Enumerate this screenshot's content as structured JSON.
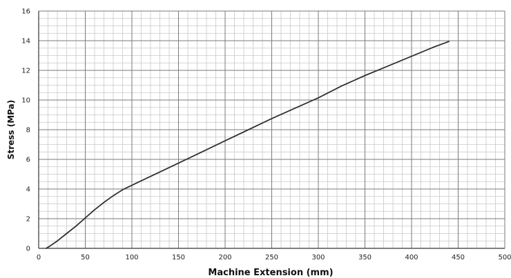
{
  "chart_data": {
    "type": "line",
    "title": "",
    "xlabel": "Machine Extension (mm)",
    "ylabel": "Stress (MPa)",
    "xlim": [
      0,
      500
    ],
    "ylim": [
      0,
      16
    ],
    "xticks": [
      0,
      50,
      100,
      150,
      200,
      250,
      300,
      350,
      400,
      450,
      500
    ],
    "yticks": [
      0,
      2,
      4,
      6,
      8,
      10,
      12,
      14,
      16
    ],
    "grid": true,
    "legend": "none",
    "series": [
      {
        "color": "#303030",
        "x": [
          8,
          12,
          20,
          30,
          40,
          50,
          60,
          70,
          80,
          90,
          100,
          120,
          150,
          175,
          200,
          225,
          250,
          275,
          300,
          325,
          350,
          375,
          400,
          425,
          440
        ],
        "y": [
          0.0,
          0.15,
          0.5,
          1.0,
          1.5,
          2.05,
          2.6,
          3.1,
          3.55,
          3.95,
          4.25,
          4.85,
          5.75,
          6.5,
          7.25,
          8.0,
          8.75,
          9.45,
          10.15,
          10.95,
          11.65,
          12.3,
          12.95,
          13.6,
          13.95
        ]
      }
    ]
  }
}
